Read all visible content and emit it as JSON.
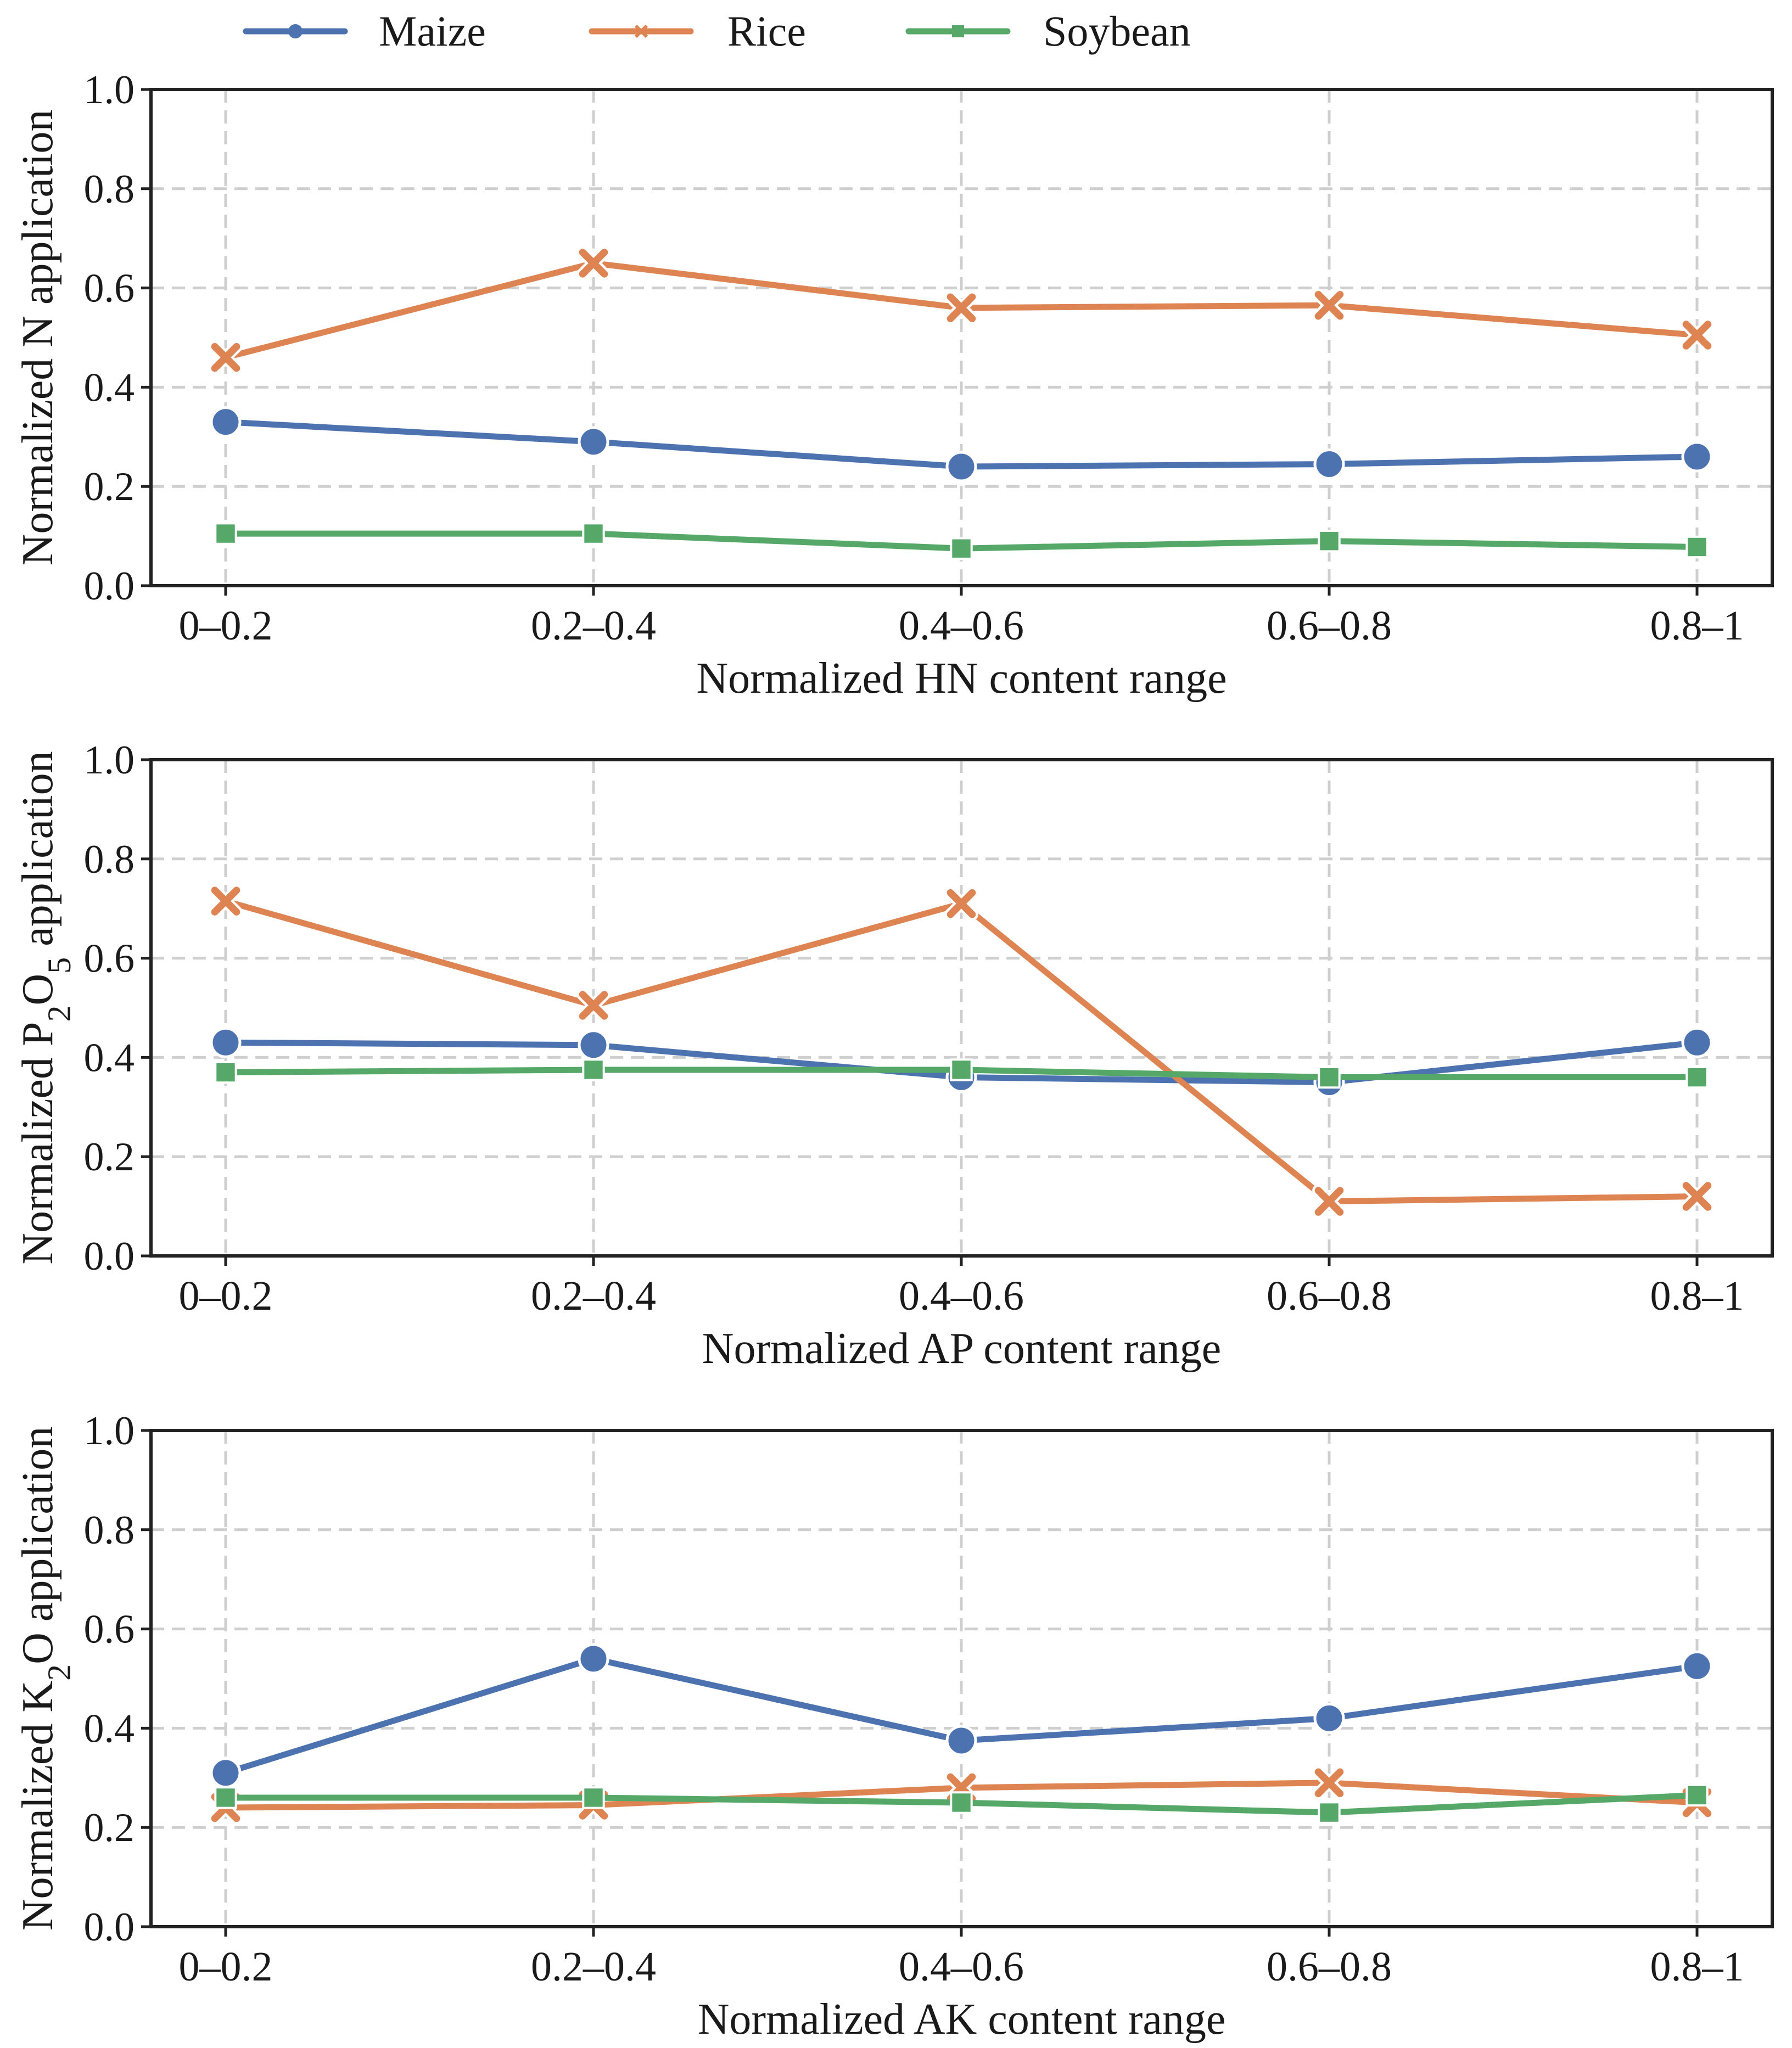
{
  "legend": {
    "position": "top-center",
    "items": [
      {
        "name": "Maize",
        "color": "#4c72b0",
        "marker": "circle"
      },
      {
        "name": "Rice",
        "color": "#dd8452",
        "marker": "x"
      },
      {
        "name": "Soybean",
        "color": "#55a868",
        "marker": "square"
      }
    ]
  },
  "chart_data": [
    {
      "type": "line",
      "xlabel": "Normalized HN content range",
      "ylabel": "Normalized N application",
      "categories": [
        "0–0.2",
        "0.2–0.4",
        "0.4–0.6",
        "0.6–0.8",
        "0.8–1"
      ],
      "ylim": [
        0,
        1.0
      ],
      "yticks": [
        "0.0",
        "0.2",
        "0.4",
        "0.6",
        "0.8",
        "1.0"
      ],
      "grid": true,
      "series": [
        {
          "name": "Maize",
          "values": [
            0.33,
            0.29,
            0.24,
            0.245,
            0.26
          ]
        },
        {
          "name": "Rice",
          "values": [
            0.46,
            0.65,
            0.56,
            0.565,
            0.505
          ]
        },
        {
          "name": "Soybean",
          "values": [
            0.105,
            0.105,
            0.075,
            0.09,
            0.078
          ]
        }
      ]
    },
    {
      "type": "line",
      "xlabel": "Normalized AP content range",
      "ylabel": "Normalized P₂O₅ application",
      "categories": [
        "0–0.2",
        "0.2–0.4",
        "0.4–0.6",
        "0.6–0.8",
        "0.8–1"
      ],
      "ylim": [
        0,
        1.0
      ],
      "yticks": [
        "0.0",
        "0.2",
        "0.4",
        "0.6",
        "0.8",
        "1.0"
      ],
      "grid": true,
      "series": [
        {
          "name": "Maize",
          "values": [
            0.43,
            0.425,
            0.36,
            0.35,
            0.43
          ]
        },
        {
          "name": "Rice",
          "values": [
            0.715,
            0.505,
            0.71,
            0.11,
            0.12
          ]
        },
        {
          "name": "Soybean",
          "values": [
            0.37,
            0.375,
            0.375,
            0.36,
            0.36
          ]
        }
      ]
    },
    {
      "type": "line",
      "xlabel": "Normalized AK content range",
      "ylabel": "Normalized K₂O application",
      "categories": [
        "0–0.2",
        "0.2–0.4",
        "0.4–0.6",
        "0.6–0.8",
        "0.8–1"
      ],
      "ylim": [
        0,
        1.0
      ],
      "yticks": [
        "0.0",
        "0.2",
        "0.4",
        "0.6",
        "0.8",
        "1.0"
      ],
      "grid": true,
      "series": [
        {
          "name": "Maize",
          "values": [
            0.31,
            0.54,
            0.375,
            0.42,
            0.525
          ]
        },
        {
          "name": "Rice",
          "values": [
            0.24,
            0.245,
            0.28,
            0.29,
            0.25
          ]
        },
        {
          "name": "Soybean",
          "values": [
            0.26,
            0.26,
            0.25,
            0.23,
            0.265
          ]
        }
      ]
    }
  ]
}
